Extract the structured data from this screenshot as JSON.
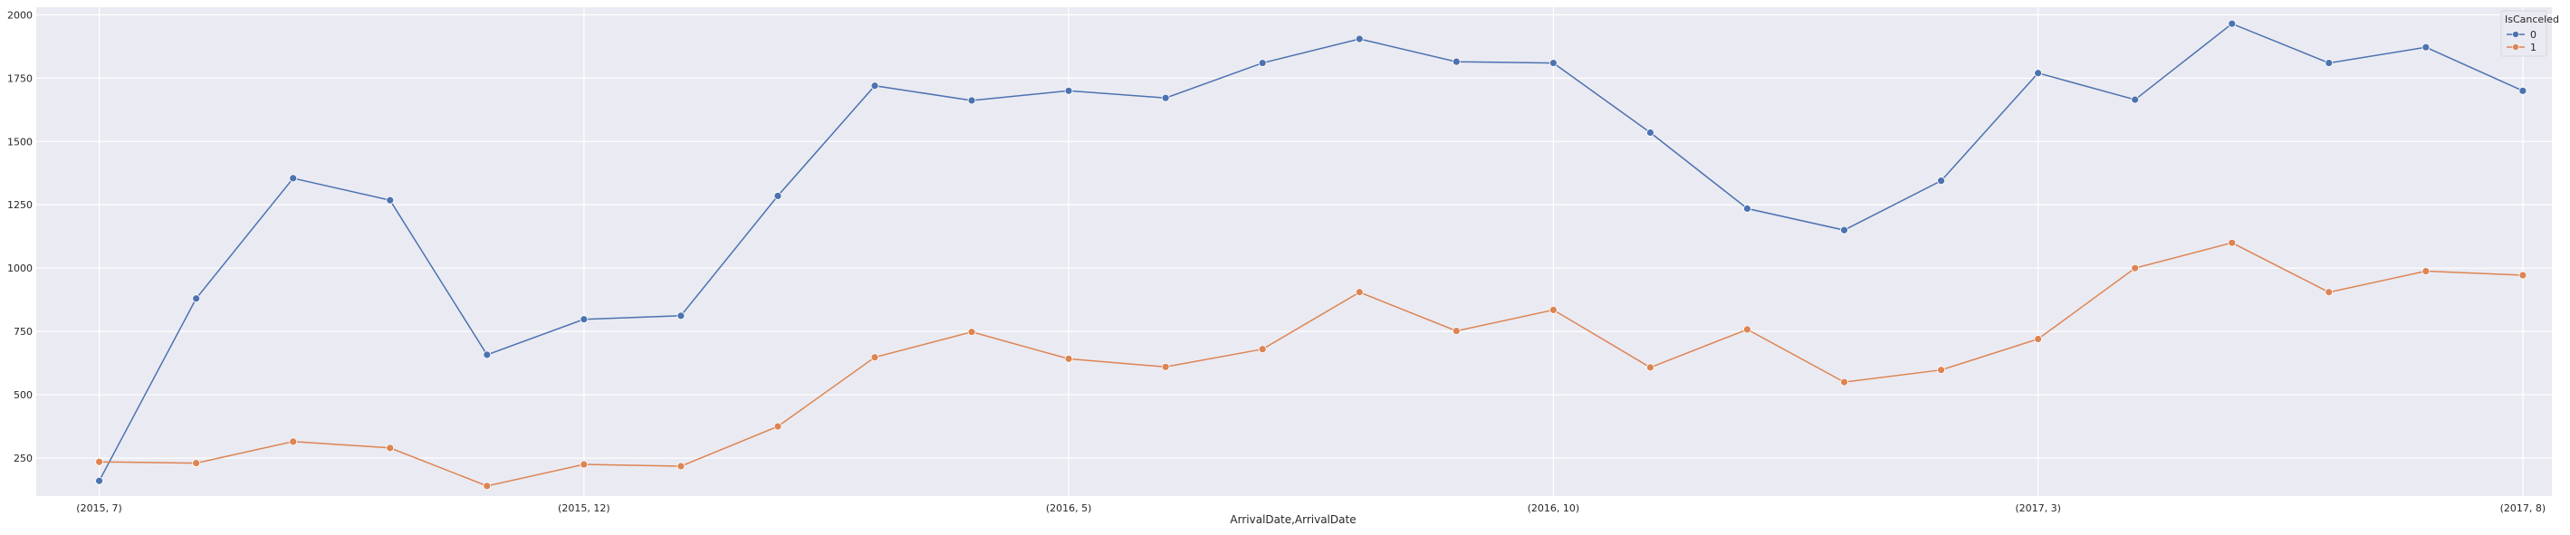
{
  "chart_data": {
    "type": "line",
    "xlabel": "ArrivalDate,ArrivalDate",
    "ylabel": "",
    "ylim": [
      100,
      2030
    ],
    "x_index_range": [
      -0.65,
      25.3
    ],
    "x": [
      "(2015, 7)",
      "(2015, 8)",
      "(2015, 9)",
      "(2015, 10)",
      "(2015, 11)",
      "(2015, 12)",
      "(2016, 1)",
      "(2016, 2)",
      "(2016, 3)",
      "(2016, 4)",
      "(2016, 5)",
      "(2016, 6)",
      "(2016, 7)",
      "(2016, 8)",
      "(2016, 9)",
      "(2016, 10)",
      "(2016, 11)",
      "(2016, 12)",
      "(2017, 1)",
      "(2017, 2)",
      "(2017, 3)",
      "(2017, 4)",
      "(2017, 5)",
      "(2017, 6)",
      "(2017, 7)",
      "(2017, 8)"
    ],
    "xticks": [
      "(2015, 7)",
      "(2015, 12)",
      "(2016, 5)",
      "(2016, 10)",
      "(2017, 3)",
      "(2017, 8)"
    ],
    "yticks": [
      250,
      500,
      750,
      1000,
      1250,
      1500,
      1750,
      2000
    ],
    "legend": {
      "title": "IsCanceled",
      "position": "top-right"
    },
    "grid": true,
    "series": [
      {
        "name": "0",
        "color": "#4c72b0",
        "values": [
          160,
          880,
          1355,
          1268,
          658,
          798,
          812,
          1285,
          1720,
          1662,
          1700,
          1672,
          1810,
          1905,
          1815,
          1810,
          1535,
          1235,
          1150,
          1345,
          1770,
          1665,
          1965,
          1810,
          1872,
          1700
        ]
      },
      {
        "name": "1",
        "color": "#dd8452",
        "values": [
          235,
          230,
          315,
          290,
          140,
          225,
          218,
          375,
          648,
          748,
          642,
          610,
          680,
          905,
          752,
          835,
          608,
          758,
          550,
          598,
          720,
          1000,
          1100,
          905,
          988,
          972
        ]
      }
    ]
  }
}
